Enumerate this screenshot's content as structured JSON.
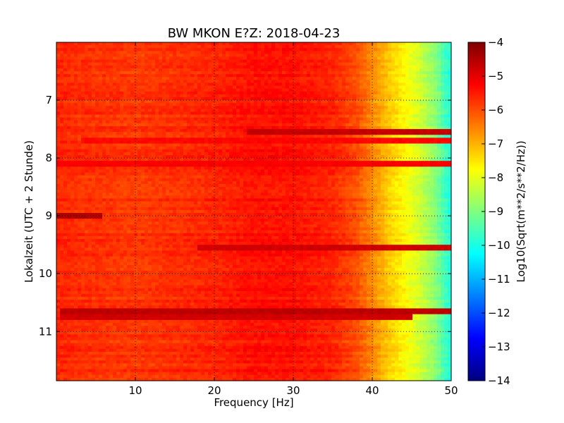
{
  "chart_data": {
    "type": "heatmap",
    "title": "BW MKON E?Z: 2018-04-23",
    "xlabel": "Frequency [Hz]",
    "ylabel": "Lokalzeit (UTC + 2 Stunde)",
    "xlim": [
      0,
      50
    ],
    "ylim": [
      11.85,
      6.0
    ],
    "y_inverted": true,
    "x_ticks": [
      10,
      20,
      30,
      40,
      50
    ],
    "y_ticks": [
      7,
      8,
      9,
      10,
      11
    ],
    "grid": "dotted",
    "colormap": "jet",
    "colorbar": {
      "label": "Log10(Sqrt(m**2/s**2/Hz))",
      "range": [
        -14,
        -4
      ],
      "ticks": [
        -4,
        -5,
        -6,
        -7,
        -8,
        -9,
        -10,
        -11,
        -12,
        -13,
        -14
      ]
    },
    "jet_colors": [
      "#00007f",
      "#0000ff",
      "#007fff",
      "#00ffff",
      "#7fff7f",
      "#ffff00",
      "#ff7f00",
      "#ff0000",
      "#7f0000"
    ],
    "frequency_profile_hz": [
      0,
      3,
      10,
      20,
      25,
      30,
      35,
      38,
      40,
      42,
      44,
      46,
      48,
      49,
      50
    ],
    "frequency_profile_level": [
      -5.6,
      -5.7,
      -5.8,
      -5.6,
      -5.4,
      -5.4,
      -5.6,
      -6.0,
      -6.6,
      -7.2,
      -7.7,
      -8.2,
      -8.9,
      -9.5,
      -10.0
    ],
    "bands": [
      {
        "time": 7.55,
        "f_start": 24,
        "f_end": 50,
        "level": -4.7
      },
      {
        "time": 7.7,
        "f_start": 3,
        "f_end": 50,
        "level": -5.3
      },
      {
        "time": 8.1,
        "f_start": 0,
        "f_end": 50,
        "level": -5.2
      },
      {
        "time": 9.0,
        "f_start": 0,
        "f_end": 6,
        "level": -4.5
      },
      {
        "time": 9.55,
        "f_start": 18,
        "f_end": 50,
        "level": -4.8
      },
      {
        "time": 10.67,
        "f_start": 0.5,
        "f_end": 50,
        "level": -4.6
      },
      {
        "time": 10.75,
        "f_start": 0.5,
        "f_end": 45,
        "level": -4.8
      }
    ]
  }
}
